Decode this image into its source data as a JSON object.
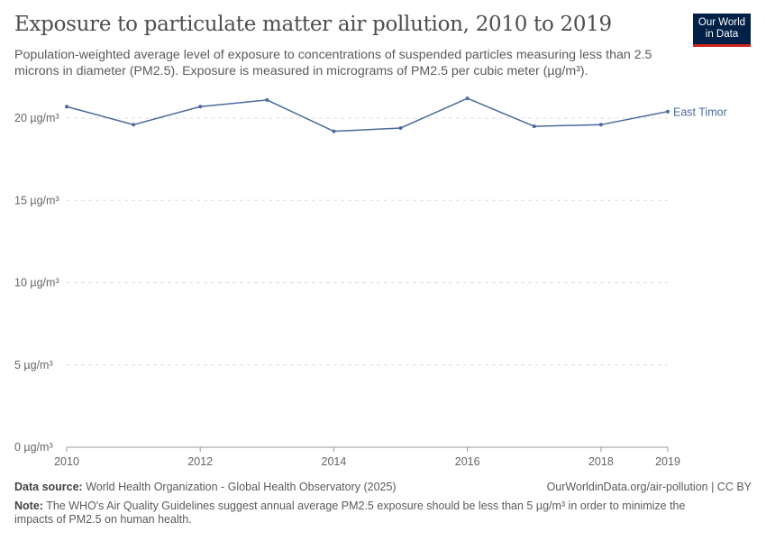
{
  "header": {
    "title": "Exposure to particulate matter air pollution, 2010 to 2019",
    "subtitle": "Population-weighted average level of exposure to concentrations of suspended particles measuring less than 2.5 microns in diameter (PM2.5). Exposure is measured in micrograms of PM2.5 per cubic meter (µg/m³).",
    "logo": "Our World in Data"
  },
  "chart_data": {
    "type": "line",
    "x": [
      2010,
      2011,
      2012,
      2013,
      2014,
      2015,
      2016,
      2017,
      2018,
      2019
    ],
    "series": [
      {
        "name": "East Timor",
        "values": [
          20.7,
          19.6,
          20.7,
          21.1,
          19.2,
          19.4,
          21.2,
          19.5,
          19.6,
          20.4
        ],
        "color": "#4c6a9c"
      }
    ],
    "yticks": [
      "0 µg/m³",
      "5 µg/m³",
      "10 µg/m³",
      "15 µg/m³",
      "20 µg/m³"
    ],
    "ytick_values": [
      0,
      5,
      10,
      15,
      20
    ],
    "xticks": [
      "2010",
      "2012",
      "2014",
      "2016",
      "2018",
      "2019"
    ],
    "xtick_values": [
      2010,
      2012,
      2014,
      2016,
      2018,
      2019
    ],
    "ylim": [
      0,
      20
    ],
    "xlim": [
      2010,
      2019
    ],
    "grid": "horizontal dashed",
    "legend": "line-end label"
  },
  "footer": {
    "source_label": "Data source:",
    "source": "World Health Organization - Global Health Observatory (2025)",
    "url": "OurWorldinData.org/air-pollution | CC BY",
    "note_label": "Note:",
    "note": "The WHO's Air Quality Guidelines suggest annual average PM2.5 exposure should be less than 5 µg/m³ in order to minimize the impacts of PM2.5 on human health."
  }
}
